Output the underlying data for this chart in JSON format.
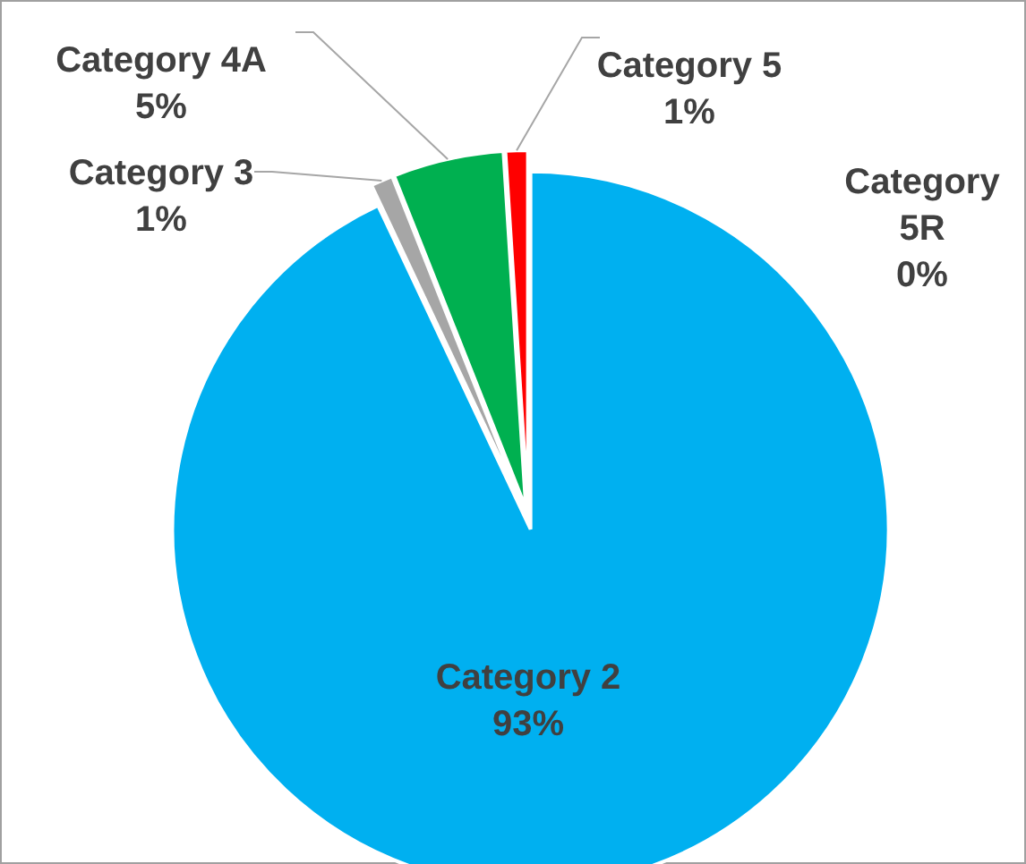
{
  "chart_data": {
    "type": "pie",
    "categories": [
      "Category 2",
      "Category 3",
      "Category 4A",
      "Category 5",
      "Category 5R"
    ],
    "values": [
      93,
      1,
      5,
      1,
      0
    ],
    "colors": [
      "#00b0f0",
      "#a6a6a6",
      "#00b050",
      "#ff0000",
      "#7030a0"
    ],
    "value_labels": [
      "93%",
      "1%",
      "5%",
      "1%",
      "0%"
    ]
  }
}
